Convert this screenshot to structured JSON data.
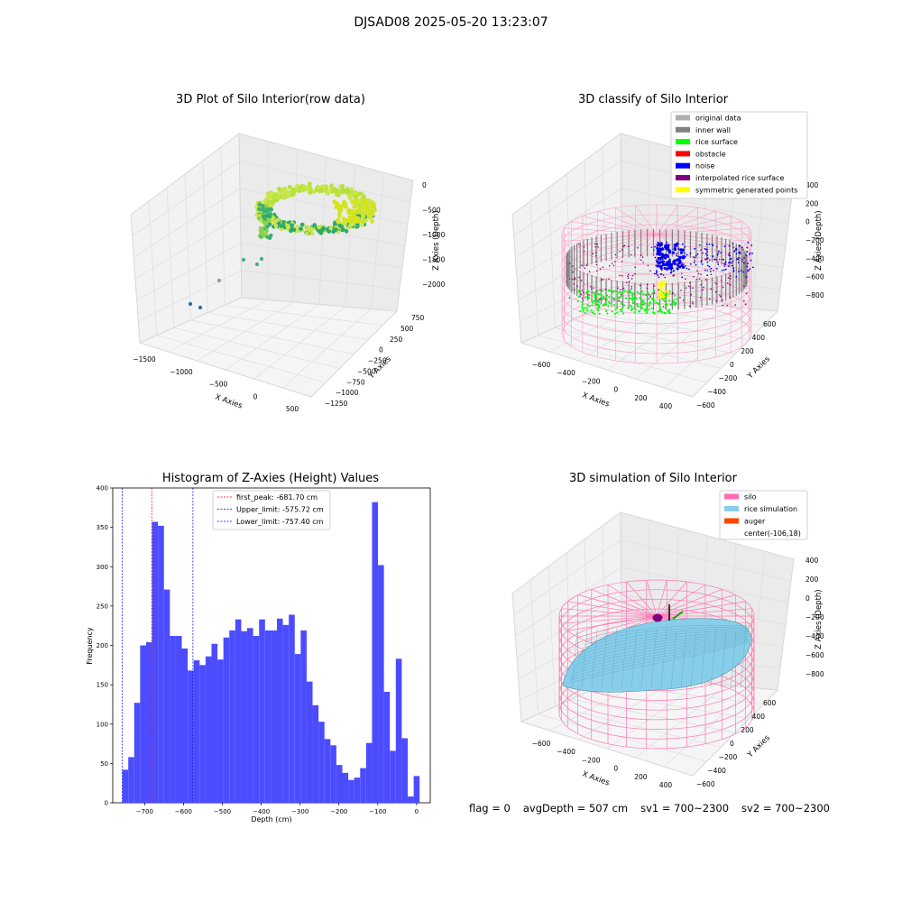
{
  "figure_title": "DJSAD08 2025-05-20 13:23:07",
  "panels": {
    "raw": {
      "title": "3D Plot of Silo Interior(row data)",
      "xlabel": "X Axies",
      "ylabel": "Y Axies",
      "zlabel": "Z Axies (Depth)",
      "x_ticks": [
        "-1500",
        "-1000",
        "-500",
        "0",
        "500"
      ],
      "y_ticks": [
        "750",
        "500",
        "250",
        "0",
        "-250",
        "-500",
        "-750",
        "-1000",
        "-1250"
      ],
      "z_ticks": [
        "0",
        "-500",
        "-1000",
        "-1500",
        "-2000"
      ]
    },
    "classify": {
      "title": "3D classify of Silo Interior",
      "xlabel": "X Axies",
      "ylabel": "Y Axies",
      "zlabel": "Z Axies (Depth)",
      "x_ticks": [
        "-600",
        "-400",
        "-200",
        "0",
        "200",
        "400"
      ],
      "y_ticks": [
        "600",
        "400",
        "200",
        "0",
        "-200",
        "-400",
        "-600"
      ],
      "z_ticks": [
        "400",
        "200",
        "0",
        "-200",
        "-400",
        "-600",
        "-800"
      ],
      "legend": [
        {
          "label": "original data",
          "color": "#b0b0b0"
        },
        {
          "label": "inner wall",
          "color": "#808080"
        },
        {
          "label": "rice surface",
          "color": "#00ff00"
        },
        {
          "label": "obstacle",
          "color": "#ff0000"
        },
        {
          "label": "noise",
          "color": "#0000ff"
        },
        {
          "label": "interpolated rice surface",
          "color": "#800080"
        },
        {
          "label": "symmetric generated points",
          "color": "#ffff00"
        }
      ]
    },
    "simulation": {
      "title": "3D simulation of Silo Interior",
      "xlabel": "X Axies",
      "ylabel": "Y Axies",
      "zlabel": "Z Axies (Depth)",
      "x_ticks": [
        "-600",
        "-400",
        "-200",
        "0",
        "200",
        "400"
      ],
      "y_ticks": [
        "600",
        "400",
        "200",
        "0",
        "-200",
        "-400",
        "-600"
      ],
      "z_ticks": [
        "400",
        "200",
        "0",
        "-200",
        "-400",
        "-600",
        "-800"
      ],
      "legend": [
        {
          "label": "silo",
          "color": "#ff69b4"
        },
        {
          "label": "rice simulation",
          "color": "#87ceeb"
        },
        {
          "label": "auger",
          "color": "#ff4500"
        },
        {
          "label": "center(-106,18)",
          "color": ""
        }
      ]
    }
  },
  "footer": {
    "flag": "flag = 0",
    "avg_depth": "avgDepth = 507 cm",
    "sv1": "sv1 = 700~2300",
    "sv2": "sv2 = 700~2300"
  },
  "chart_data": [
    {
      "type": "histogram",
      "title": "Histogram of Z-Axies (Height) Values",
      "xlabel": "Depth (cm)",
      "ylabel": "Frequency",
      "xlim": [
        -782,
        35
      ],
      "ylim": [
        0,
        400
      ],
      "x_ticks": [
        -700,
        -600,
        -500,
        -400,
        -300,
        -200,
        -100,
        0
      ],
      "y_ticks": [
        0,
        50,
        100,
        150,
        200,
        250,
        300,
        350,
        400
      ],
      "bar_color": "#4c4cff",
      "bin_start": -757.4,
      "bin_width": 15.3,
      "values": [
        42,
        58,
        127,
        200,
        204,
        357,
        352,
        271,
        212,
        212,
        196,
        168,
        181,
        175,
        186,
        202,
        182,
        210,
        219,
        233,
        218,
        222,
        212,
        233,
        219,
        219,
        234,
        226,
        239,
        189,
        219,
        154,
        124,
        103,
        81,
        73,
        48,
        38,
        29,
        32,
        44,
        76,
        382,
        302,
        141,
        66,
        183,
        82,
        8,
        34
      ],
      "vlines": [
        {
          "label": "first_peak: -681.70 cm",
          "x": -681.7,
          "color": "#ff0000"
        },
        {
          "label": "Upper_limit: -575.72 cm",
          "x": -575.72,
          "color": "#0000ff"
        },
        {
          "label": "Lower_limit: -757.40 cm",
          "x": -757.4,
          "color": "#0000ff"
        }
      ]
    }
  ]
}
